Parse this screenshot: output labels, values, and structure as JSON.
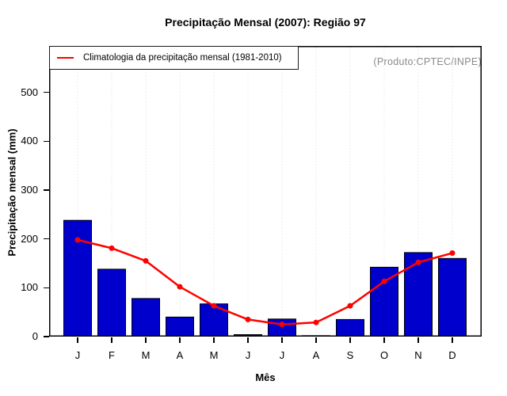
{
  "title": "Precipitação Mensal (2007): Região 97",
  "annotation": {
    "text": "(Produto:CPTEC/INPE)",
    "color": "#8A8A8A"
  },
  "legend": {
    "label": "Climatologia da precipitação mensal (1981-2010)"
  },
  "colors": {
    "bar": "#0000CD",
    "bar_border": "#000000",
    "line": "#FF0000",
    "grid": "#D9D9D9",
    "axis": "#000000"
  },
  "chart_data": {
    "type": "bar",
    "title": "Precipitação Mensal (2007): Região 97",
    "xlabel": "Mês",
    "ylabel": "Precipitação mensal (mm)",
    "categories": [
      "J",
      "F",
      "M",
      "A",
      "M",
      "J",
      "J",
      "A",
      "S",
      "O",
      "N",
      "D"
    ],
    "series": [
      {
        "name": "Precipitação Mensal (2007)",
        "type": "bar",
        "color": "#0000CD",
        "values": [
          238,
          138,
          78,
          40,
          67,
          4,
          36,
          2,
          35,
          142,
          172,
          160
        ]
      },
      {
        "name": "Climatologia da precipitação mensal (1981-2010)",
        "type": "line",
        "color": "#FF0000",
        "values": [
          198,
          181,
          155,
          102,
          63,
          35,
          25,
          29,
          63,
          113,
          152,
          171
        ]
      }
    ],
    "yticks": [
      0,
      100,
      200,
      300,
      400,
      500
    ],
    "ylim": [
      0,
      595
    ],
    "grid": "vertical-dotted",
    "legend_position": "top-left"
  }
}
